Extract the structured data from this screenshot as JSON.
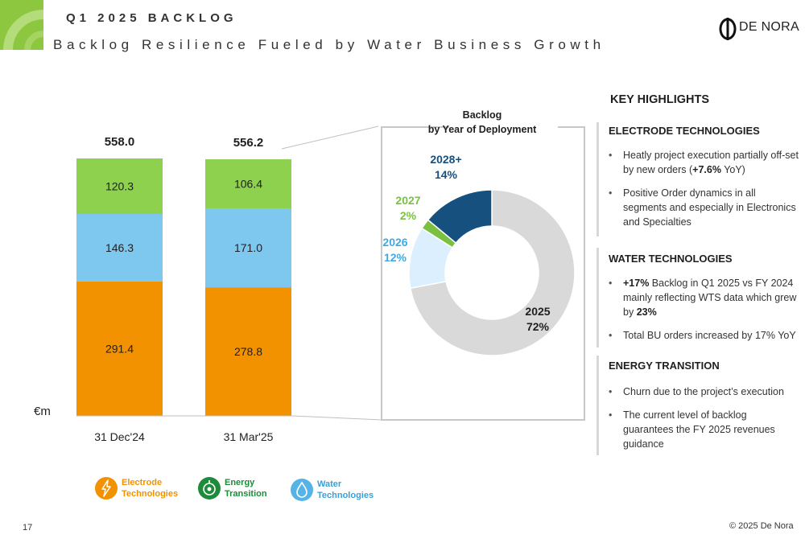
{
  "header": {
    "title": "Q1 2025 BACKLOG",
    "subtitle": "Backlog Resilience Fueled by Water Business Growth",
    "logo_text": "DE NORA"
  },
  "colors": {
    "electrode": "#f39200",
    "water": "#7ec8ef",
    "energy": "#8dd14f",
    "y2025": "#d9d9d9",
    "y2026": "#dcefff",
    "y2027": "#7ac142",
    "y2028": "#16507f"
  },
  "chart_data": [
    {
      "type": "bar",
      "stacked": true,
      "categories": [
        "31 Dec'24",
        "31 Mar'25"
      ],
      "totals": [
        "558.0",
        "556.2"
      ],
      "unit_label": "€m",
      "series": [
        {
          "name": "Electrode Technologies",
          "values": [
            291.4,
            278.8
          ],
          "labels": [
            "291.4",
            "278.8"
          ]
        },
        {
          "name": "Water Technologies",
          "values": [
            146.3,
            171.0
          ],
          "labels": [
            "146.3",
            "171.0"
          ]
        },
        {
          "name": "Energy Transition",
          "values": [
            120.3,
            106.4
          ],
          "labels": [
            "120.3",
            "106.4"
          ]
        }
      ],
      "legend_placement": "bottom-left"
    },
    {
      "type": "pie",
      "donut": true,
      "title_line1": "Backlog",
      "title_line2": "by Year of Deployment",
      "slices": [
        {
          "year": "2025",
          "pct_label": "72%",
          "value": 72
        },
        {
          "year": "2026",
          "pct_label": "12%",
          "value": 12
        },
        {
          "year": "2027",
          "pct_label": "2%",
          "value": 2
        },
        {
          "year": "2028+",
          "pct_label": "14%",
          "value": 14
        }
      ]
    }
  ],
  "legend": [
    {
      "line1": "Electrode",
      "line2": "Technologies",
      "icon": "lightning-icon"
    },
    {
      "line1": "Energy",
      "line2": "Transition",
      "icon": "energy-circle-icon"
    },
    {
      "line1": "Water",
      "line2": "Technologies",
      "icon": "water-drop-icon"
    }
  ],
  "highlights": {
    "title": "KEY HIGHLIGHTS",
    "electrode": {
      "title": "ELECTRODE TECHNOLOGIES",
      "b1_pre": "Heatly project execution partially off-set by new orders (",
      "b1_bold": "+7.6%",
      "b1_post": " YoY)",
      "b2": "Positive Order dynamics in all segments and especially in Electronics and Specialties"
    },
    "water": {
      "title": "WATER TECHNOLOGIES",
      "b1_bold1": "+17%",
      "b1_mid": " Backlog in Q1 2025 vs FY 2024 mainly reflecting WTS data which grew by ",
      "b1_bold2": "23%",
      "b2": "Total BU orders increased by 17% YoY"
    },
    "energy": {
      "title": "ENERGY TRANSITION",
      "b1": "Churn due to the project’s execution",
      "b2": "The current level of backlog guarantees the FY 2025 revenues guidance"
    }
  },
  "footer": {
    "page": "17",
    "copyright": "© 2025 De Nora"
  }
}
